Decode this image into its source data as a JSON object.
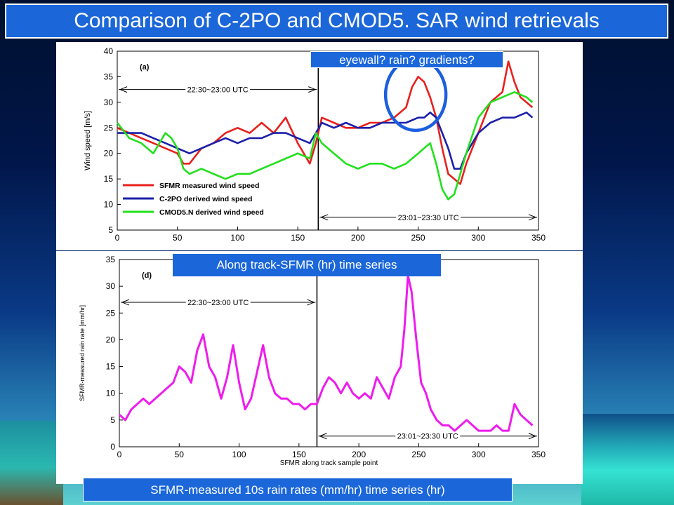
{
  "slide": {
    "title": "Comparison of C-2PO and CMOD5. SAR wind retrievals",
    "caption_eyewall": "eyewall? rain? gradients?",
    "caption_along_track": "Along track-SFMR (hr) time series",
    "caption_rain": "SFMR-measured 10s rain rates (mm/hr) time series (hr)"
  },
  "chart_data": [
    {
      "type": "line",
      "panel_label": "(a)",
      "ylabel": "Wind speed [m/s]",
      "xlabel": "",
      "xlim": [
        0,
        350
      ],
      "ylim": [
        5,
        40
      ],
      "xticks": [
        0,
        50,
        100,
        150,
        200,
        250,
        300,
        350
      ],
      "yticks": [
        5,
        10,
        15,
        20,
        25,
        30,
        35,
        40
      ],
      "divider_x": 167,
      "annotations": {
        "left_period": "22:30~23:00 UTC",
        "right_period": "23:01~23:30 UTC"
      },
      "legend_position": "bottom-left",
      "series": [
        {
          "name": "SFMR measured wind speed",
          "color": "#e8201c",
          "x": [
            0,
            10,
            20,
            30,
            40,
            50,
            55,
            60,
            70,
            80,
            90,
            100,
            110,
            120,
            130,
            140,
            150,
            155,
            160,
            165,
            170,
            180,
            190,
            200,
            210,
            220,
            230,
            240,
            245,
            250,
            255,
            260,
            265,
            270,
            275,
            280,
            285,
            290,
            300,
            310,
            320,
            325,
            330,
            335,
            340,
            345
          ],
          "values": [
            25,
            24,
            23,
            22,
            21,
            20,
            18,
            18,
            21,
            22,
            24,
            25,
            24,
            26,
            24,
            27,
            22,
            20,
            18,
            22,
            27,
            26,
            25,
            25,
            26,
            26,
            27,
            29,
            33,
            35,
            34,
            31,
            27,
            21,
            16,
            15,
            14,
            18,
            24,
            30,
            32,
            38,
            34,
            31,
            30,
            29
          ]
        },
        {
          "name": "C-2PO derived wind speed",
          "color": "#1c20a8",
          "x": [
            0,
            10,
            20,
            30,
            40,
            50,
            60,
            70,
            80,
            90,
            100,
            110,
            120,
            130,
            140,
            150,
            160,
            165,
            170,
            180,
            190,
            200,
            210,
            220,
            230,
            240,
            250,
            255,
            260,
            265,
            270,
            275,
            280,
            285,
            290,
            300,
            310,
            320,
            330,
            340,
            345
          ],
          "values": [
            24,
            24,
            24,
            23,
            22,
            21,
            20,
            21,
            22,
            23,
            22,
            23,
            23,
            24,
            24,
            23,
            22,
            24,
            26,
            25,
            26,
            25,
            25,
            26,
            26,
            26,
            27,
            27,
            28,
            27,
            24,
            21,
            17,
            17,
            20,
            24,
            26,
            27,
            27,
            28,
            27
          ]
        },
        {
          "name": "CMOD5.N derived wind speed",
          "color": "#22e01c",
          "x": [
            0,
            10,
            20,
            30,
            40,
            45,
            50,
            55,
            60,
            70,
            80,
            90,
            100,
            110,
            120,
            130,
            140,
            150,
            160,
            165,
            170,
            180,
            190,
            200,
            210,
            220,
            230,
            240,
            250,
            255,
            260,
            265,
            270,
            275,
            280,
            285,
            290,
            300,
            310,
            320,
            330,
            340,
            345
          ],
          "values": [
            26,
            23,
            22,
            20,
            24,
            23,
            21,
            17,
            16,
            17,
            16,
            15,
            16,
            16,
            17,
            18,
            19,
            20,
            19,
            24,
            22,
            20,
            18,
            17,
            18,
            18,
            17,
            18,
            20,
            21,
            22,
            18,
            13,
            11,
            12,
            16,
            20,
            27,
            30,
            31,
            32,
            31,
            30
          ]
        }
      ]
    },
    {
      "type": "line",
      "panel_label": "(d)",
      "ylabel": "SFMR-measured rain rate [mm/hr]",
      "xlabel": "SFMR along track sample point",
      "xlim": [
        0,
        350
      ],
      "ylim": [
        0,
        35
      ],
      "xticks": [
        0,
        50,
        100,
        150,
        200,
        250,
        300,
        350
      ],
      "yticks": [
        0,
        5,
        10,
        15,
        20,
        25,
        30,
        35
      ],
      "divider_x": 165,
      "annotations": {
        "left_period": "22:30~23:00 UTC",
        "right_period": "23:01~23:30 UTC"
      },
      "series": [
        {
          "name": "",
          "color": "#ee1cee",
          "x": [
            0,
            5,
            10,
            15,
            20,
            25,
            30,
            35,
            40,
            45,
            50,
            55,
            60,
            65,
            70,
            75,
            80,
            85,
            90,
            95,
            100,
            105,
            110,
            115,
            120,
            125,
            130,
            135,
            140,
            145,
            150,
            155,
            160,
            165,
            170,
            175,
            180,
            185,
            190,
            195,
            200,
            205,
            210,
            215,
            220,
            225,
            230,
            235,
            238,
            241,
            244,
            248,
            252,
            256,
            260,
            265,
            270,
            275,
            280,
            285,
            290,
            295,
            300,
            305,
            310,
            315,
            320,
            325,
            330,
            335,
            340,
            345
          ],
          "values": [
            6,
            5,
            7,
            8,
            9,
            8,
            9,
            10,
            11,
            12,
            15,
            14,
            12,
            18,
            21,
            15,
            13,
            9,
            13,
            19,
            12,
            7,
            9,
            14,
            19,
            13,
            10,
            9,
            9,
            8,
            8,
            7,
            8,
            8,
            11,
            13,
            12,
            10,
            12,
            10,
            9,
            10,
            9,
            13,
            11,
            9,
            13,
            15,
            22,
            32,
            29,
            20,
            12,
            10,
            7,
            5,
            4,
            4,
            3,
            4,
            5,
            4,
            3,
            3,
            3,
            4,
            3,
            3,
            8,
            6,
            5,
            4
          ]
        }
      ]
    }
  ]
}
